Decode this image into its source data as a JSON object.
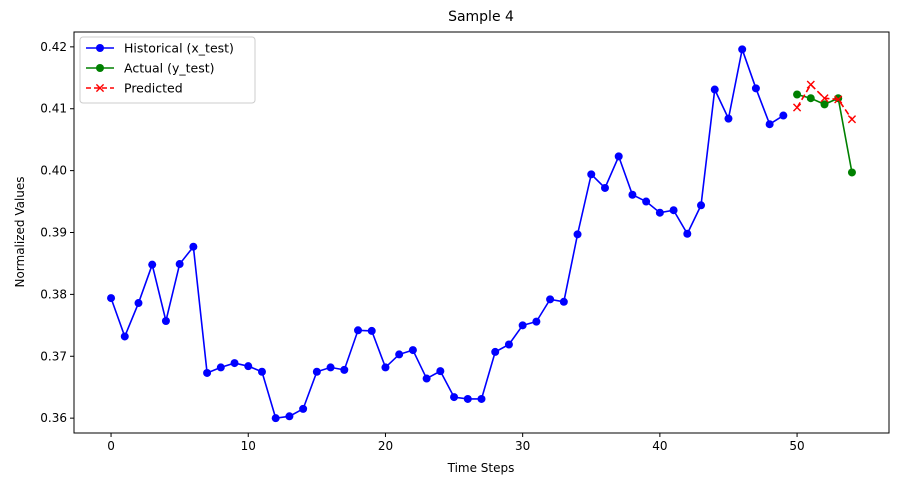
{
  "chart_data": {
    "type": "line",
    "title": "Sample 4",
    "xlabel": "Time Steps",
    "ylabel": "Normalized Values",
    "xlim": [
      -2.7,
      56.7
    ],
    "ylim": [
      0.3576,
      0.4224
    ],
    "xticks": [
      0,
      10,
      20,
      30,
      40,
      50
    ],
    "yticks": [
      0.36,
      0.37,
      0.38,
      0.39,
      0.4,
      0.41,
      0.42
    ],
    "ytick_labels": [
      "0.36",
      "0.37",
      "0.38",
      "0.39",
      "0.40",
      "0.41",
      "0.42"
    ],
    "grid": false,
    "legend_position": "top-left",
    "series": [
      {
        "name": "Historical (x_test)",
        "color": "#0000ff",
        "marker": "circle",
        "linestyle": "solid",
        "x": [
          0,
          1,
          2,
          3,
          4,
          5,
          6,
          7,
          8,
          9,
          10,
          11,
          12,
          13,
          14,
          15,
          16,
          17,
          18,
          19,
          20,
          21,
          22,
          23,
          24,
          25,
          26,
          27,
          28,
          29,
          30,
          31,
          32,
          33,
          34,
          35,
          36,
          37,
          38,
          39,
          40,
          41,
          42,
          43,
          44,
          45,
          46,
          47,
          48,
          49
        ],
        "values": [
          0.3794,
          0.3732,
          0.3786,
          0.3848,
          0.3757,
          0.3849,
          0.3877,
          0.3673,
          0.3682,
          0.3689,
          0.3684,
          0.3675,
          0.36,
          0.3603,
          0.3615,
          0.3675,
          0.3682,
          0.3678,
          0.3742,
          0.3741,
          0.3682,
          0.3703,
          0.371,
          0.3664,
          0.3676,
          0.3634,
          0.3631,
          0.3631,
          0.3707,
          0.3719,
          0.375,
          0.3756,
          0.3792,
          0.3788,
          0.3897,
          0.3994,
          0.3972,
          0.4023,
          0.3961,
          0.395,
          0.3932,
          0.3936,
          0.3898,
          0.3944,
          0.4131,
          0.4084,
          0.4196,
          0.4133,
          0.4075,
          0.4089
        ]
      },
      {
        "name": "Actual (y_test)",
        "color": "#008000",
        "marker": "circle",
        "linestyle": "solid",
        "x": [
          50,
          51,
          52,
          53,
          54
        ],
        "values": [
          0.4123,
          0.4117,
          0.4107,
          0.4117,
          0.3997
        ]
      },
      {
        "name": "Predicted",
        "color": "#ff0000",
        "marker": "x",
        "linestyle": "dashed",
        "x": [
          50,
          51,
          52,
          53,
          54
        ],
        "values": [
          0.4102,
          0.4139,
          0.4117,
          0.4115,
          0.4083
        ]
      }
    ]
  }
}
